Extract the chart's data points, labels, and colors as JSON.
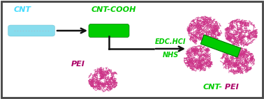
{
  "bg_color": "#ffffff",
  "border_color": "#444444",
  "cnt_color": "#88ddee",
  "cnt_cooh_color": "#00cc00",
  "pei_blob_color": "#cc3388",
  "arrow_color": "#111111",
  "label_cnt": "CNT",
  "label_cnt_cooh": "CNT-COOH",
  "label_edc": "EDC.HCl",
  "label_nhs": "NHS",
  "label_pei": "PEI",
  "cyan_color": "#44ddff",
  "green_color": "#00cc00",
  "magenta_color": "#aa0066",
  "figsize": [
    3.78,
    1.42
  ],
  "dpi": 100
}
